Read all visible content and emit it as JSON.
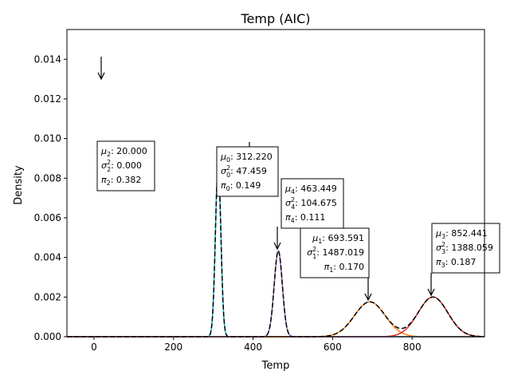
{
  "chart_data": {
    "type": "line",
    "title": "Temp (AIC)",
    "xlabel": "Temp",
    "ylabel": "Density",
    "xlim": [
      -68,
      982
    ],
    "ylim": [
      0,
      0.0155
    ],
    "xticks": [
      0,
      200,
      400,
      600,
      800
    ],
    "xtick_labels": [
      "0",
      "200",
      "400",
      "600",
      "800"
    ],
    "yticks": [
      0,
      0.002,
      0.004,
      0.006,
      0.008,
      0.01,
      0.012,
      0.014
    ],
    "ytick_labels": [
      "0.000",
      "0.002",
      "0.004",
      "0.006",
      "0.008",
      "0.010",
      "0.012",
      "0.014"
    ],
    "grid": false,
    "components": [
      {
        "index": 0,
        "mu": 312.22,
        "var": 47.459,
        "pi": 0.149,
        "color": "#17becf",
        "mu_text": "312.220",
        "var_text": "47.459",
        "pi_text": "0.149"
      },
      {
        "index": 1,
        "mu": 693.591,
        "var": 1487.019,
        "pi": 0.17,
        "color": "#ff7f0e",
        "mu_text": "693.591",
        "var_text": "1487.019",
        "pi_text": "0.170"
      },
      {
        "index": 2,
        "mu": 20.0,
        "var": 0.0,
        "pi": 0.382,
        "color": "#2ca02c",
        "mu_text": "20.000",
        "var_text": "0.000",
        "pi_text": "0.382"
      },
      {
        "index": 3,
        "mu": 852.441,
        "var": 1388.059,
        "pi": 0.187,
        "color": "#d62728",
        "mu_text": "852.441",
        "var_text": "1388.059",
        "pi_text": "0.187"
      },
      {
        "index": 4,
        "mu": 463.449,
        "var": 104.675,
        "pi": 0.111,
        "color": "#9467bd",
        "mu_text": "463.449",
        "var_text": "104.675",
        "pi_text": "0.111"
      }
    ],
    "mixture_line": {
      "color": "#000000",
      "style": "dashed"
    }
  }
}
